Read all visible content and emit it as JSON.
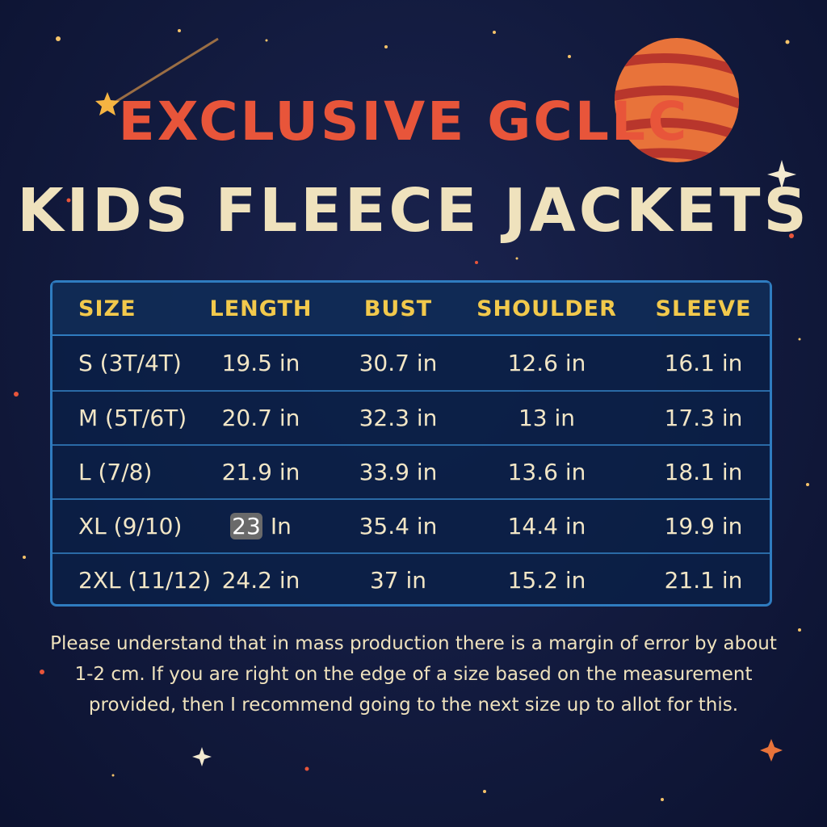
{
  "title_line1": "EXCLUSIVE GCLLC",
  "title_line2": "KIDS FLEECE JACKETS",
  "colors": {
    "title_red": "#e8553a",
    "cream": "#efe2bd",
    "header_gold": "#f2c94c",
    "table_border": "#2f7cc0"
  },
  "table": {
    "headers": [
      "SIZE",
      "LENGTH",
      "BUST",
      "SHOULDER",
      "SLEEVE"
    ],
    "rows": [
      [
        "S (3T/4T)",
        "19.5 in",
        "30.7 in",
        "12.6 in",
        "16.1 in"
      ],
      [
        "M (5T/6T)",
        "20.7 in",
        "32.3 in",
        "13 in",
        "17.3 in"
      ],
      [
        "L (7/8)",
        "21.9 in",
        "33.9 in",
        "13.6 in",
        "18.1 in"
      ],
      [
        "XL (9/10)",
        {
          "highlighted": "23",
          "rest": "In"
        },
        "35.4 in",
        "14.4 in",
        "19.9 in"
      ],
      [
        "2XL (11/12)",
        "24.2 in",
        "37 in",
        "15.2 in",
        "21.1 in"
      ]
    ]
  },
  "note": "Please understand that in mass production there is a margin of error by about 1-2 cm. If you are right on the edge of a size based on the measurement provided, then I recommend going to the next size up to allot for this.",
  "decorations": [
    "planet-icon",
    "shooting-star-icon",
    "sparkle-star-icon"
  ]
}
